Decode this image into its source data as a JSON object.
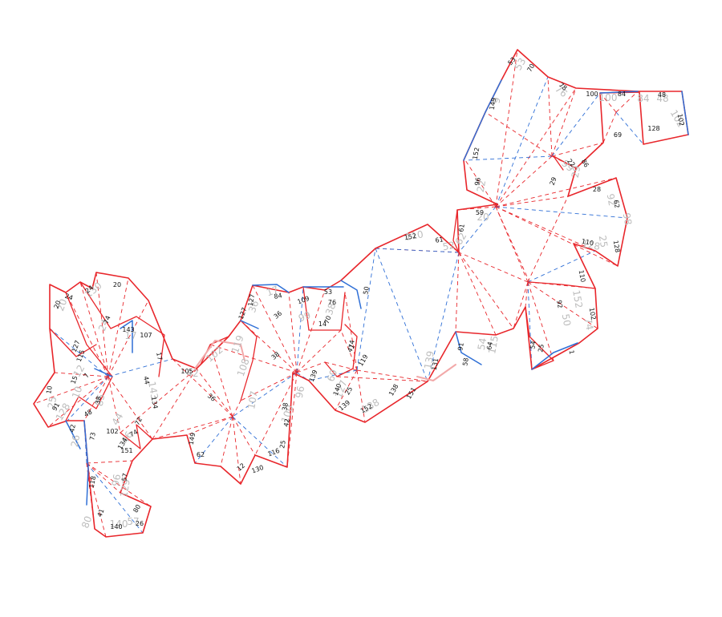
{
  "colors": {
    "cut": "#e8262b",
    "cut_alt": "#2f6fd6",
    "cut_faint": "#f2a9a9",
    "fold_red": "#e8262b",
    "fold_blue": "#2f6fd6",
    "label_dark": "#111111",
    "label_ghost": "#bdbdbd"
  },
  "labels": {
    "dark": [
      "70",
      "53",
      "78",
      "100",
      "84",
      "48",
      "149",
      "128",
      "102",
      "69",
      "152",
      "22",
      "29",
      "86",
      "28",
      "59",
      "61",
      "62",
      "128",
      "110",
      "152",
      "61",
      "110",
      "92",
      "102",
      "96",
      "50",
      "53",
      "76",
      "70",
      "14",
      "74",
      "109",
      "84",
      "127",
      "127",
      "36",
      "38",
      "24",
      "20",
      "20",
      "24",
      "74",
      "143",
      "107",
      "17",
      "134",
      "44",
      "105",
      "36",
      "149",
      "62",
      "25",
      "116",
      "12",
      "130",
      "38",
      "42",
      "41",
      "119",
      "91",
      "58",
      "64",
      "54",
      "25",
      "139",
      "140",
      "139",
      "152",
      "25",
      "138",
      "131",
      "151",
      "10",
      "91",
      "15",
      "127",
      "115",
      "38",
      "48",
      "42",
      "73",
      "102",
      "74",
      "134",
      "72",
      "151",
      "118",
      "57",
      "80",
      "41",
      "140",
      "26",
      "7",
      "1"
    ],
    "ghost": [
      "53",
      "9",
      "76",
      "100",
      "84",
      "48",
      "102",
      "22",
      "99",
      "29",
      "98",
      "92",
      "20",
      "62",
      "25",
      "128",
      "110",
      "52",
      "152",
      "50",
      "74",
      "54",
      "115",
      "102",
      "42",
      "119",
      "107",
      "108",
      "96",
      "100",
      "38",
      "99",
      "17",
      "36",
      "69",
      "127",
      "138",
      "139",
      "130",
      "20",
      "24",
      "17",
      "143",
      "44",
      "25",
      "10",
      "85",
      "96",
      "129",
      "57",
      "80",
      "140",
      "26",
      "46",
      "128",
      "12"
    ]
  }
}
